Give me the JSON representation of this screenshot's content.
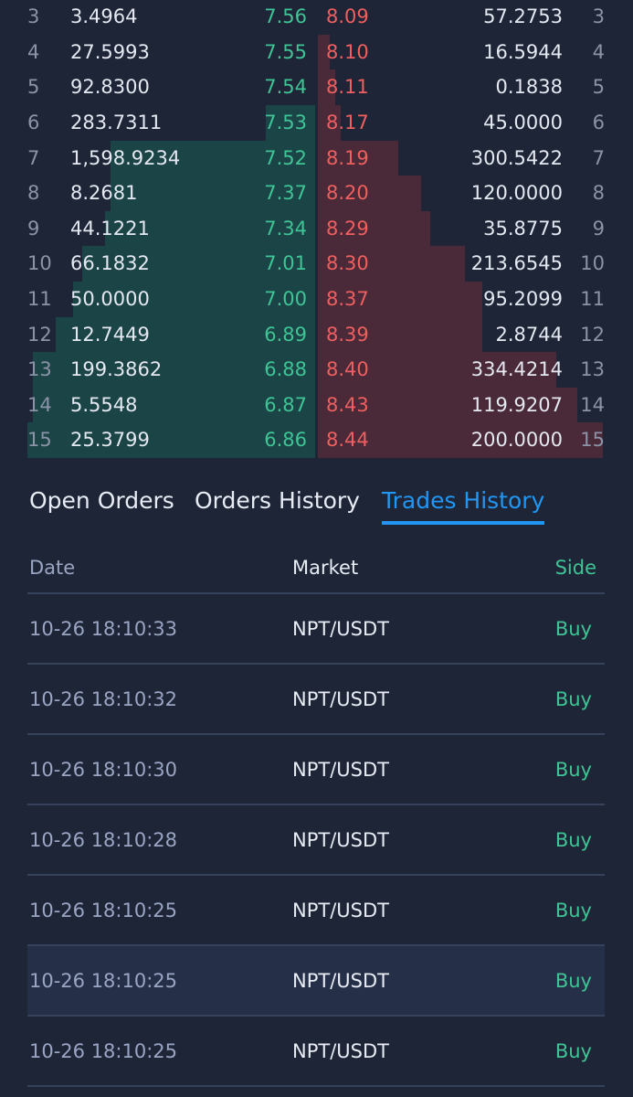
{
  "order_book": {
    "rows": [
      {
        "index": "3",
        "bid_amount": "3.4964",
        "bid_price": "7.56",
        "ask_price": "8.09",
        "ask_amount": "57.2753",
        "bid_depth": 0.0,
        "ask_depth": 0.0
      },
      {
        "index": "4",
        "bid_amount": "27.5993",
        "bid_price": "7.55",
        "ask_price": "8.10",
        "ask_amount": "16.5944",
        "bid_depth": 0.0,
        "ask_depth": 0.04
      },
      {
        "index": "5",
        "bid_amount": "92.8300",
        "bid_price": "7.54",
        "ask_price": "8.11",
        "ask_amount": "0.1838",
        "bid_depth": 0.0,
        "ask_depth": 0.06
      },
      {
        "index": "6",
        "bid_amount": "283.7311",
        "bid_price": "7.53",
        "ask_price": "8.17",
        "ask_amount": "45.0000",
        "bid_depth": 0.17,
        "ask_depth": 0.08
      },
      {
        "index": "7",
        "bid_amount": "1,598.9234",
        "bid_price": "7.52",
        "ask_price": "8.19",
        "ask_amount": "300.5422",
        "bid_depth": 0.71,
        "ask_depth": 0.28
      },
      {
        "index": "8",
        "bid_amount": "8.2681",
        "bid_price": "7.37",
        "ask_price": "8.20",
        "ask_amount": "120.0000",
        "bid_depth": 0.71,
        "ask_depth": 0.36
      },
      {
        "index": "9",
        "bid_amount": "44.1221",
        "bid_price": "7.34",
        "ask_price": "8.29",
        "ask_amount": "35.8775",
        "bid_depth": 0.73,
        "ask_depth": 0.39
      },
      {
        "index": "10",
        "bid_amount": "66.1832",
        "bid_price": "7.01",
        "ask_price": "8.30",
        "ask_amount": "213.6545",
        "bid_depth": 0.81,
        "ask_depth": 0.51
      },
      {
        "index": "11",
        "bid_amount": "50.0000",
        "bid_price": "7.00",
        "ask_price": "8.37",
        "ask_amount": "95.2099",
        "bid_depth": 0.84,
        "ask_depth": 0.57
      },
      {
        "index": "12",
        "bid_amount": "12.7449",
        "bid_price": "6.89",
        "ask_price": "8.39",
        "ask_amount": "2.8744",
        "bid_depth": 0.9,
        "ask_depth": 0.57
      },
      {
        "index": "13",
        "bid_amount": "199.3862",
        "bid_price": "6.88",
        "ask_price": "8.40",
        "ask_amount": "334.4214",
        "bid_depth": 0.98,
        "ask_depth": 0.83
      },
      {
        "index": "14",
        "bid_amount": "5.5548",
        "bid_price": "6.87",
        "ask_price": "8.43",
        "ask_amount": "119.9207",
        "bid_depth": 0.98,
        "ask_depth": 0.9
      },
      {
        "index": "15",
        "bid_amount": "25.3799",
        "bid_price": "6.86",
        "ask_price": "8.44",
        "ask_amount": "200.0000",
        "bid_depth": 1.0,
        "ask_depth": 0.99
      }
    ]
  },
  "tabs": [
    {
      "label": "Open Orders",
      "active": false
    },
    {
      "label": "Orders History",
      "active": false
    },
    {
      "label": "Trades History",
      "active": true
    }
  ],
  "trades": {
    "headers": {
      "date": "Date",
      "market": "Market",
      "side": "Side"
    },
    "rows": [
      {
        "date": "10-26 18:10:33",
        "market": "NPT/USDT",
        "side": "Buy"
      },
      {
        "date": "10-26 18:10:32",
        "market": "NPT/USDT",
        "side": "Buy"
      },
      {
        "date": "10-26 18:10:30",
        "market": "NPT/USDT",
        "side": "Buy"
      },
      {
        "date": "10-26 18:10:28",
        "market": "NPT/USDT",
        "side": "Buy"
      },
      {
        "date": "10-26 18:10:25",
        "market": "NPT/USDT",
        "side": "Buy"
      },
      {
        "date": "10-26 18:10:25",
        "market": "NPT/USDT",
        "side": "Buy",
        "highlighted": true
      },
      {
        "date": "10-26 18:10:25",
        "market": "NPT/USDT",
        "side": "Buy"
      }
    ]
  },
  "colors": {
    "background": "#1e2537",
    "buy": "#3fc495",
    "sell": "#ef5f5f",
    "accent": "#2196f3"
  }
}
